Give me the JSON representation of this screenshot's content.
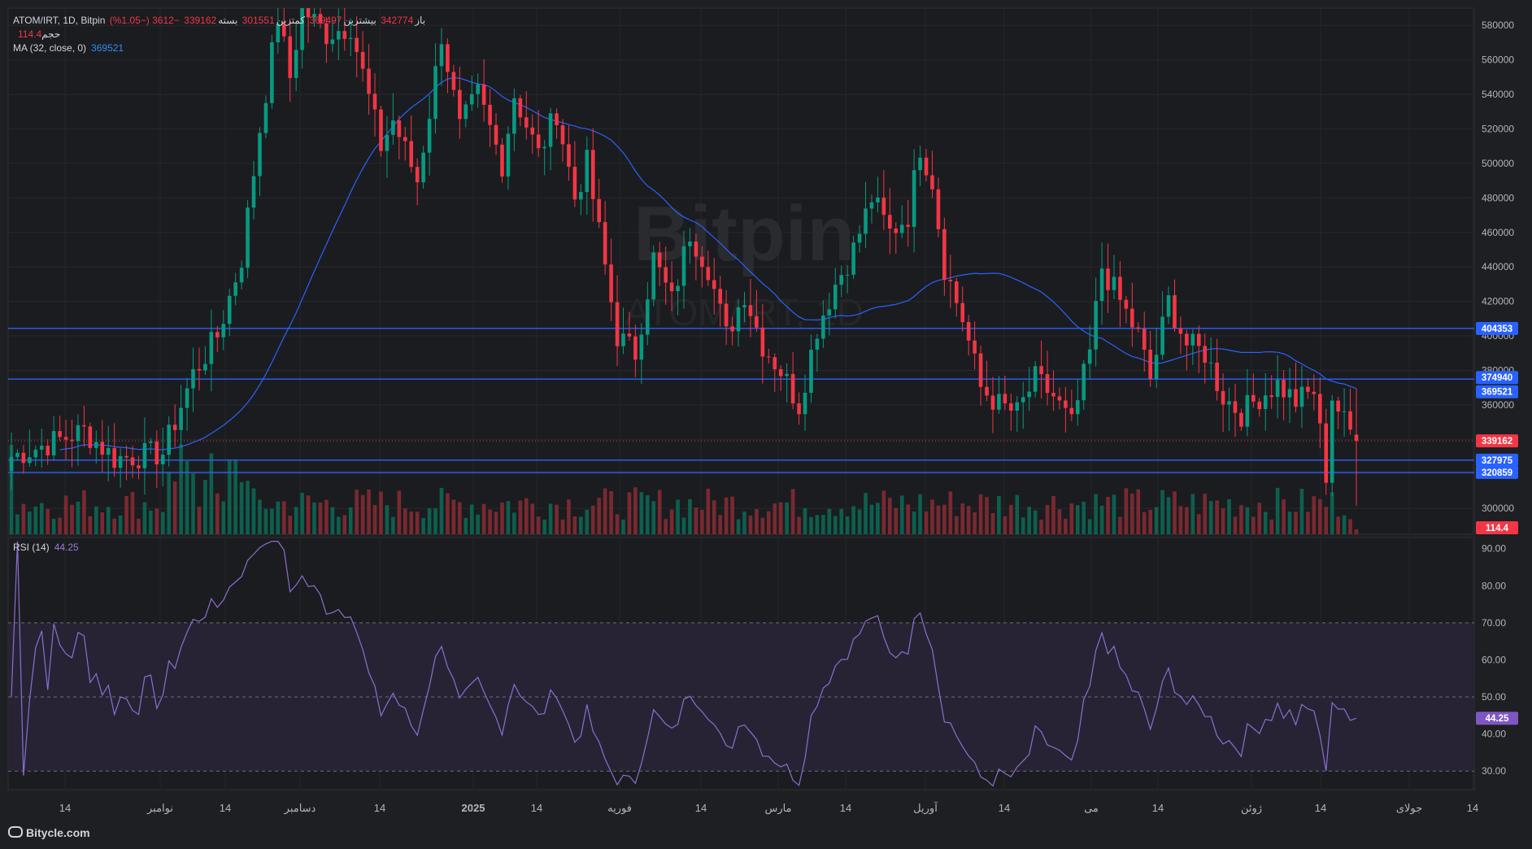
{
  "header": {
    "symbol": "ATOM/IRT, 1D, Bitpin",
    "open_label": "باز",
    "open_value": "342774",
    "high_label": "بیشترین",
    "high_value": "369497",
    "low_label": "کمترین",
    "low_value": "301551",
    "close_label": "بسته",
    "close_value": "339162",
    "change_text": "−3612 (−1.05%)"
  },
  "volume_legend": {
    "label": "حجم",
    "value": "114.4"
  },
  "ma_legend": {
    "label": "MA (32, close, 0)",
    "value": "369521"
  },
  "rsi_legend": {
    "label": "RSI (14)",
    "value": "44.25"
  },
  "watermark": {
    "exchange": "Bitpin",
    "symbol": "ATOM/IRT, 1D"
  },
  "brand": "Bitycle.com",
  "colors": {
    "up": "#089981",
    "down": "#f23645",
    "ma": "#2962ff",
    "hline": "#2962ff",
    "rsi": "#7e57c2",
    "background": "#1e1f22"
  },
  "price_badges": {
    "resistance": "404353",
    "level": "374940",
    "ma": "369521",
    "last": "339162",
    "support1": "327975",
    "support2": "320859",
    "volume": "114.4",
    "rsi": "44.25"
  },
  "price_axis_labels": [
    "580000",
    "560000",
    "540000",
    "520000",
    "500000",
    "480000",
    "460000",
    "440000",
    "420000",
    "400000",
    "380000",
    "360000",
    "300000"
  ],
  "rsi_axis_labels": [
    "90.00",
    "80.00",
    "70.00",
    "60.00",
    "50.00",
    "40.00",
    "30.00"
  ],
  "time_axis_labels": [
    "14",
    "نوامبر",
    "14",
    "دسامبر",
    "14",
    "2025",
    "14",
    "فوریه",
    "14",
    "مارس",
    "14",
    "آوریل",
    "14",
    "می",
    "14",
    "ژوئن",
    "14",
    "جولای",
    "14"
  ],
  "chart_data": {
    "type": "candlestick",
    "interval": "1D",
    "price_ylim": [
      285000,
      590000
    ],
    "rsi_ylim": [
      25,
      93
    ],
    "horizontal_levels": [
      404353,
      374940,
      327975,
      320859
    ],
    "rsi_bands": [
      70,
      50,
      30
    ],
    "ohlc_last": {
      "open": 342774,
      "high": 369497,
      "low": 301551,
      "close": 339162
    },
    "price_anchors": [
      {
        "d": 0,
        "p": 330000
      },
      {
        "d": 12,
        "p": 345000
      },
      {
        "d": 17,
        "p": 329000
      },
      {
        "d": 25,
        "p": 332000
      },
      {
        "d": 30,
        "p": 378000
      },
      {
        "d": 34,
        "p": 400000
      },
      {
        "d": 38,
        "p": 445000
      },
      {
        "d": 41,
        "p": 520000
      },
      {
        "d": 44,
        "p": 585000
      },
      {
        "d": 46,
        "p": 550000
      },
      {
        "d": 48,
        "p": 590000
      },
      {
        "d": 52,
        "p": 575000
      },
      {
        "d": 56,
        "p": 580000
      },
      {
        "d": 61,
        "p": 510000
      },
      {
        "d": 63,
        "p": 525000
      },
      {
        "d": 67,
        "p": 490000
      },
      {
        "d": 69,
        "p": 530000
      },
      {
        "d": 71,
        "p": 575000
      },
      {
        "d": 74,
        "p": 520000
      },
      {
        "d": 77,
        "p": 540000
      },
      {
        "d": 81,
        "p": 500000
      },
      {
        "d": 83,
        "p": 540000
      },
      {
        "d": 87,
        "p": 505000
      },
      {
        "d": 90,
        "p": 530000
      },
      {
        "d": 93,
        "p": 480000
      },
      {
        "d": 95,
        "p": 500000
      },
      {
        "d": 98,
        "p": 440000
      },
      {
        "d": 100,
        "p": 400000
      },
      {
        "d": 103,
        "p": 390000
      },
      {
        "d": 106,
        "p": 445000
      },
      {
        "d": 109,
        "p": 420000
      },
      {
        "d": 112,
        "p": 460000
      },
      {
        "d": 115,
        "p": 440000
      },
      {
        "d": 118,
        "p": 400000
      },
      {
        "d": 121,
        "p": 425000
      },
      {
        "d": 124,
        "p": 395000
      },
      {
        "d": 127,
        "p": 380000
      },
      {
        "d": 130,
        "p": 360000
      },
      {
        "d": 133,
        "p": 405000
      },
      {
        "d": 136,
        "p": 430000
      },
      {
        "d": 139,
        "p": 450000
      },
      {
        "d": 142,
        "p": 480000
      },
      {
        "d": 145,
        "p": 460000
      },
      {
        "d": 148,
        "p": 470000
      },
      {
        "d": 150,
        "p": 510000
      },
      {
        "d": 152,
        "p": 490000
      },
      {
        "d": 154,
        "p": 440000
      },
      {
        "d": 157,
        "p": 410000
      },
      {
        "d": 160,
        "p": 370000
      },
      {
        "d": 163,
        "p": 360000
      },
      {
        "d": 166,
        "p": 355000
      },
      {
        "d": 169,
        "p": 375000
      },
      {
        "d": 172,
        "p": 365000
      },
      {
        "d": 175,
        "p": 348000
      },
      {
        "d": 178,
        "p": 390000
      },
      {
        "d": 180,
        "p": 440000
      },
      {
        "d": 183,
        "p": 420000
      },
      {
        "d": 186,
        "p": 400000
      },
      {
        "d": 188,
        "p": 375000
      },
      {
        "d": 191,
        "p": 420000
      },
      {
        "d": 194,
        "p": 395000
      },
      {
        "d": 197,
        "p": 390000
      },
      {
        "d": 200,
        "p": 365000
      },
      {
        "d": 203,
        "p": 355000
      },
      {
        "d": 206,
        "p": 365000
      },
      {
        "d": 209,
        "p": 372000
      },
      {
        "d": 212,
        "p": 362000
      },
      {
        "d": 215,
        "p": 368000
      },
      {
        "d": 217,
        "p": 320000
      },
      {
        "d": 218,
        "p": 365000
      },
      {
        "d": 220,
        "p": 350000
      },
      {
        "d": 222,
        "p": 339162
      }
    ],
    "ma_period": 32,
    "ma_last": 369521,
    "rsi_last": 44.25,
    "volume_last": 114.4
  }
}
